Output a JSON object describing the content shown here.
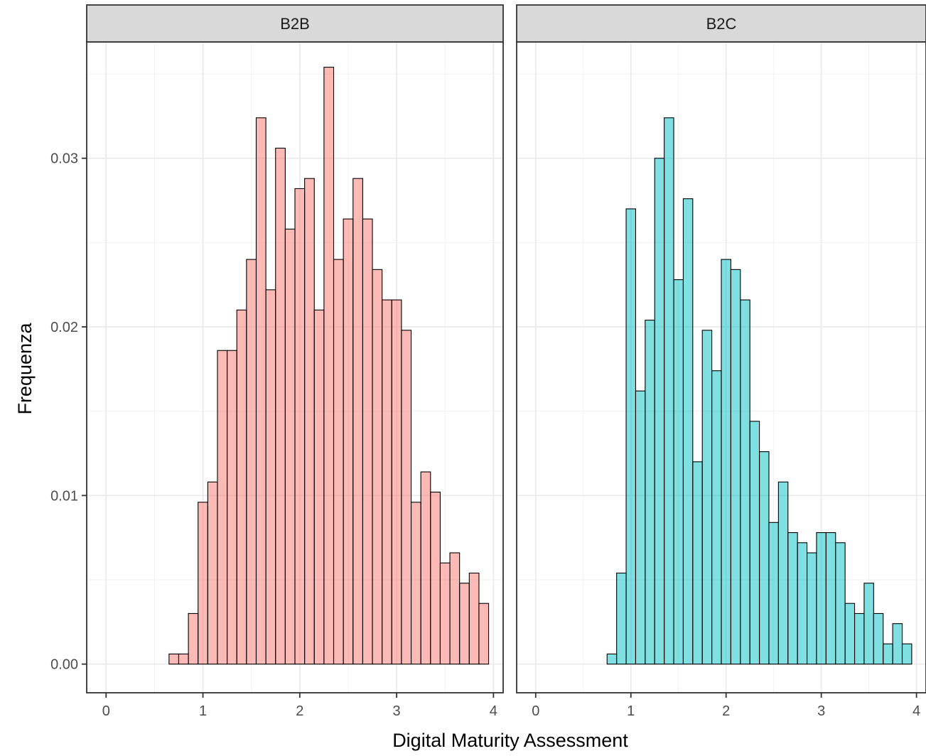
{
  "chart_data": {
    "type": "bar",
    "subtype": "faceted-histogram",
    "xlabel": "Digital Maturity Assessment",
    "ylabel": "Frequenza",
    "xlim": [
      -0.2,
      4.1
    ],
    "ylim": [
      -0.0017,
      0.0369
    ],
    "x_ticks": [
      0,
      1,
      2,
      3,
      4
    ],
    "x_tick_labels": [
      "0",
      "1",
      "2",
      "3",
      "4"
    ],
    "y_ticks": [
      0,
      0.01,
      0.02,
      0.03
    ],
    "y_tick_labels": [
      "0.00",
      "0.01",
      "0.02",
      "0.03"
    ],
    "grid": true,
    "theme": "bw",
    "bin_width": 0.1,
    "facets": [
      {
        "label": "B2B",
        "fill": "#F8766D",
        "bins": [
          {
            "x": 0.7,
            "y": 0.0006
          },
          {
            "x": 0.8,
            "y": 0.0006
          },
          {
            "x": 0.9,
            "y": 0.003
          },
          {
            "x": 1.0,
            "y": 0.0096
          },
          {
            "x": 1.1,
            "y": 0.0108
          },
          {
            "x": 1.2,
            "y": 0.0186
          },
          {
            "x": 1.3,
            "y": 0.0186
          },
          {
            "x": 1.4,
            "y": 0.021
          },
          {
            "x": 1.5,
            "y": 0.024
          },
          {
            "x": 1.6,
            "y": 0.0324
          },
          {
            "x": 1.7,
            "y": 0.0222
          },
          {
            "x": 1.8,
            "y": 0.0306
          },
          {
            "x": 1.9,
            "y": 0.0258
          },
          {
            "x": 2.0,
            "y": 0.0282
          },
          {
            "x": 2.1,
            "y": 0.0288
          },
          {
            "x": 2.2,
            "y": 0.021
          },
          {
            "x": 2.3,
            "y": 0.0354
          },
          {
            "x": 2.4,
            "y": 0.024
          },
          {
            "x": 2.5,
            "y": 0.0264
          },
          {
            "x": 2.6,
            "y": 0.0288
          },
          {
            "x": 2.7,
            "y": 0.0264
          },
          {
            "x": 2.8,
            "y": 0.0234
          },
          {
            "x": 2.9,
            "y": 0.0216
          },
          {
            "x": 3.0,
            "y": 0.0216
          },
          {
            "x": 3.1,
            "y": 0.0198
          },
          {
            "x": 3.2,
            "y": 0.0096
          },
          {
            "x": 3.3,
            "y": 0.0114
          },
          {
            "x": 3.4,
            "y": 0.0102
          },
          {
            "x": 3.5,
            "y": 0.006
          },
          {
            "x": 3.6,
            "y": 0.0066
          },
          {
            "x": 3.7,
            "y": 0.0048
          },
          {
            "x": 3.8,
            "y": 0.0054
          },
          {
            "x": 3.9,
            "y": 0.0036
          }
        ]
      },
      {
        "label": "B2C",
        "fill": "#00BFC4",
        "bins": [
          {
            "x": 0.8,
            "y": 0.0006
          },
          {
            "x": 0.9,
            "y": 0.0054
          },
          {
            "x": 1.0,
            "y": 0.027
          },
          {
            "x": 1.1,
            "y": 0.0162
          },
          {
            "x": 1.2,
            "y": 0.0204
          },
          {
            "x": 1.3,
            "y": 0.03
          },
          {
            "x": 1.4,
            "y": 0.0324
          },
          {
            "x": 1.5,
            "y": 0.0228
          },
          {
            "x": 1.6,
            "y": 0.0276
          },
          {
            "x": 1.7,
            "y": 0.012
          },
          {
            "x": 1.8,
            "y": 0.0198
          },
          {
            "x": 1.9,
            "y": 0.0174
          },
          {
            "x": 2.0,
            "y": 0.024
          },
          {
            "x": 2.1,
            "y": 0.0234
          },
          {
            "x": 2.2,
            "y": 0.0216
          },
          {
            "x": 2.3,
            "y": 0.0144
          },
          {
            "x": 2.4,
            "y": 0.0126
          },
          {
            "x": 2.5,
            "y": 0.0084
          },
          {
            "x": 2.6,
            "y": 0.0108
          },
          {
            "x": 2.7,
            "y": 0.0078
          },
          {
            "x": 2.8,
            "y": 0.0072
          },
          {
            "x": 2.9,
            "y": 0.0066
          },
          {
            "x": 3.0,
            "y": 0.0078
          },
          {
            "x": 3.1,
            "y": 0.0078
          },
          {
            "x": 3.2,
            "y": 0.0072
          },
          {
            "x": 3.3,
            "y": 0.0036
          },
          {
            "x": 3.4,
            "y": 0.003
          },
          {
            "x": 3.5,
            "y": 0.0048
          },
          {
            "x": 3.6,
            "y": 0.003
          },
          {
            "x": 3.7,
            "y": 0.0012
          },
          {
            "x": 3.8,
            "y": 0.0024
          },
          {
            "x": 3.9,
            "y": 0.0012
          }
        ]
      }
    ]
  }
}
